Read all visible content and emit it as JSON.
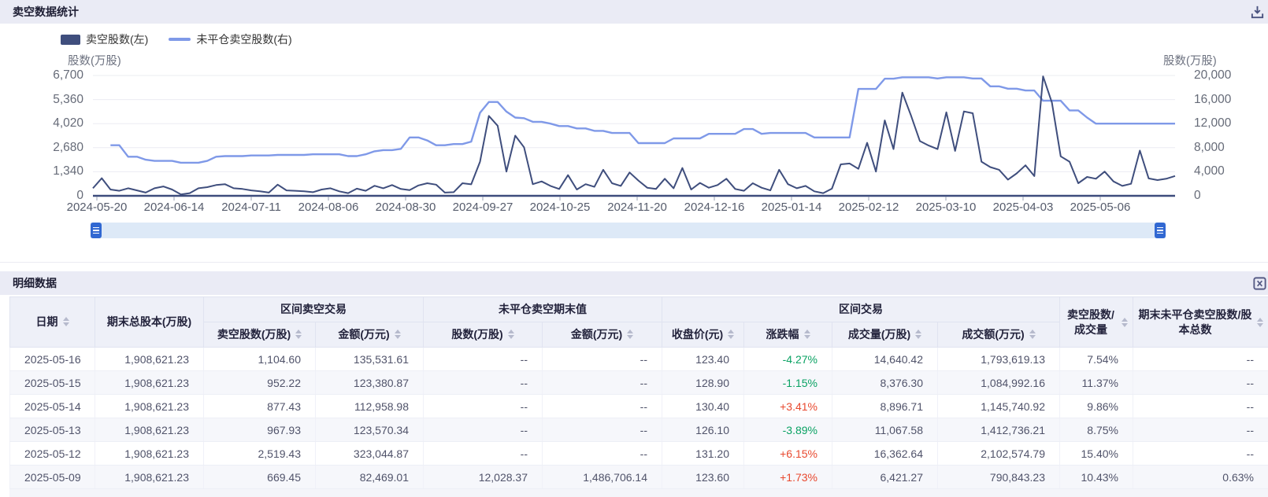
{
  "chart_section": {
    "title": "卖空数据统计",
    "icons": {
      "top_right": "download-icon"
    },
    "legend": [
      {
        "label": "卖空股数(左)",
        "color": "#3f4e7d",
        "swatch": "bar"
      },
      {
        "label": "未平仓卖空股数(右)",
        "color": "#7f99e8",
        "swatch": "line"
      }
    ],
    "left_axis": {
      "title": "股数(万股)",
      "ticks": [
        "6,700",
        "5,360",
        "4,020",
        "2,680",
        "1,340",
        "0"
      ],
      "max": 6700
    },
    "right_axis": {
      "title": "股数(万股)",
      "ticks": [
        "20,000",
        "16,000",
        "12,000",
        "8,000",
        "4,000",
        "0"
      ],
      "max": 20000
    },
    "x_ticks": [
      "2024-05-20",
      "2024-06-14",
      "2024-07-11",
      "2024-08-06",
      "2024-08-30",
      "2024-09-27",
      "2024-10-25",
      "2024-11-20",
      "2024-12-16",
      "2025-01-14",
      "2025-02-12",
      "2025-03-10",
      "2025-04-03",
      "2025-05-06"
    ],
    "chart_data": {
      "type": "line",
      "x_range": [
        "2024-05-20",
        "2025-05-16"
      ],
      "left_ylim": [
        0,
        6700
      ],
      "right_ylim": [
        0,
        20000
      ],
      "grid": true,
      "legend_position": "top-left",
      "series": [
        {
          "name": "卖空股数(左)",
          "axis": "left",
          "color": "#3f4e7d",
          "values": [
            420,
            980,
            350,
            280,
            420,
            300,
            180,
            420,
            520,
            350,
            80,
            150,
            420,
            480,
            600,
            650,
            420,
            380,
            300,
            250,
            180,
            620,
            300,
            280,
            250,
            200,
            350,
            420,
            250,
            150,
            400,
            280,
            560,
            420,
            600,
            380,
            320,
            580,
            700,
            620,
            180,
            200,
            700,
            640,
            1900,
            4450,
            3900,
            1350,
            3350,
            2700,
            650,
            800,
            550,
            380,
            1150,
            350,
            650,
            500,
            1450,
            700,
            550,
            1300,
            850,
            450,
            380,
            950,
            420,
            1550,
            350,
            720,
            450,
            600,
            950,
            380,
            280,
            700,
            450,
            300,
            1450,
            650,
            420,
            550,
            250,
            150,
            400,
            1750,
            1800,
            1500,
            2950,
            1350,
            4200,
            2600,
            5750,
            4450,
            3050,
            2800,
            2600,
            4650,
            2500,
            4700,
            4600,
            1900,
            1600,
            1450,
            900,
            1250,
            1700,
            1100,
            6650,
            5200,
            2200,
            1900,
            700,
            1050,
            950,
            1350,
            800,
            550,
            669,
            2519,
            968,
            877,
            952,
            1105
          ]
        },
        {
          "name": "未平仓卖空股数(右)",
          "axis": "right",
          "color": "#7f99e8",
          "values": [
            null,
            null,
            8400,
            8400,
            6500,
            6500,
            6000,
            5800,
            5800,
            5800,
            5500,
            5500,
            5500,
            5800,
            6500,
            6600,
            6600,
            6600,
            6700,
            6700,
            6700,
            6800,
            6800,
            6800,
            6800,
            6900,
            6900,
            6900,
            6900,
            6600,
            6600,
            6900,
            7400,
            7600,
            7600,
            7800,
            9700,
            9700,
            9200,
            8400,
            8400,
            8600,
            8600,
            9000,
            13800,
            15600,
            15600,
            14000,
            13000,
            12900,
            12300,
            12300,
            12000,
            11600,
            11600,
            11200,
            11200,
            10800,
            10800,
            10450,
            10450,
            10450,
            8760,
            8760,
            8760,
            8760,
            9540,
            9540,
            9540,
            9540,
            10300,
            10300,
            10300,
            10300,
            11100,
            11100,
            10300,
            10450,
            10450,
            10450,
            10450,
            10450,
            9700,
            9700,
            9700,
            9700,
            9700,
            17770,
            17770,
            17770,
            19470,
            19470,
            19700,
            19700,
            19700,
            19700,
            19500,
            19700,
            19700,
            19700,
            19500,
            19500,
            18200,
            18200,
            17800,
            17800,
            17500,
            17500,
            15800,
            15800,
            15800,
            14200,
            14200,
            13000,
            12000,
            12000,
            12000,
            12000,
            12000,
            12000,
            12000,
            12000,
            12000,
            12000
          ]
        }
      ]
    }
  },
  "table_section": {
    "title": "明细数据",
    "icons": {
      "top_right": "excel-export-icon"
    },
    "header": {
      "groups": [
        {
          "label": "日期",
          "rowspan": 2,
          "sort": true
        },
        {
          "label": "期末总股本(万股)",
          "rowspan": 2,
          "sort": false
        },
        {
          "label": "区间卖空交易",
          "colspan": 2
        },
        {
          "label": "未平仓卖空期末值",
          "colspan": 2
        },
        {
          "label": "区间交易",
          "colspan": 4
        },
        {
          "label": "卖空股数/成交量",
          "rowspan": 2,
          "sort": true
        },
        {
          "label": "期末未平仓卖空股数/股本总数",
          "rowspan": 2,
          "sort": true
        }
      ],
      "sub": [
        "卖空股数(万股)",
        "金额(万元)",
        "股数(万股)",
        "金额(万元)",
        "收盘价(元)",
        "涨跌幅",
        "成交量(万股)",
        "成交额(万元)"
      ]
    },
    "rows": [
      [
        "2025-05-16",
        "1,908,621.23",
        "1,104.60",
        "135,531.61",
        "--",
        "--",
        "123.40",
        "-4.27%",
        "14,640.42",
        "1,793,619.13",
        "7.54%",
        "--"
      ],
      [
        "2025-05-15",
        "1,908,621.23",
        "952.22",
        "123,380.87",
        "--",
        "--",
        "128.90",
        "-1.15%",
        "8,376.30",
        "1,084,992.16",
        "11.37%",
        "--"
      ],
      [
        "2025-05-14",
        "1,908,621.23",
        "877.43",
        "112,958.98",
        "--",
        "--",
        "130.40",
        "+3.41%",
        "8,896.71",
        "1,145,740.92",
        "9.86%",
        "--"
      ],
      [
        "2025-05-13",
        "1,908,621.23",
        "967.93",
        "123,570.34",
        "--",
        "--",
        "126.10",
        "-3.89%",
        "11,067.58",
        "1,412,736.21",
        "8.75%",
        "--"
      ],
      [
        "2025-05-12",
        "1,908,621.23",
        "2,519.43",
        "323,044.87",
        "--",
        "--",
        "131.20",
        "+6.15%",
        "16,362.64",
        "2,102,574.79",
        "15.40%",
        "--"
      ],
      [
        "2025-05-09",
        "1,908,621.23",
        "669.45",
        "82,469.01",
        "12,028.37",
        "1,486,706.14",
        "123.60",
        "+1.73%",
        "6,421.27",
        "790,843.23",
        "10.43%",
        "0.63%"
      ]
    ],
    "colors": {
      "up": "#e8492f",
      "down": "#0aa263"
    }
  }
}
